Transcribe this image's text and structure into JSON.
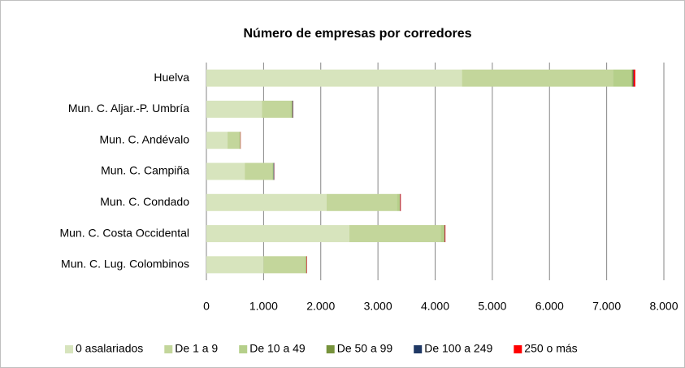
{
  "chart_data": {
    "type": "bar",
    "orientation": "horizontal",
    "stacked": true,
    "title": "Número de empresas por corredores",
    "categories": [
      "Huelva",
      "Mun. C. Aljar.-P. Umbría",
      "Mun. C. Andévalo",
      "Mun. C. Campiña",
      "Mun. C. Condado",
      "Mun. C. Costa Occidental",
      "Mun. C. Lug. Colombinos"
    ],
    "series": [
      {
        "name": "0 asalariados",
        "color": "#d7e4bd",
        "values": [
          4470,
          970,
          370,
          670,
          2100,
          2500,
          1000
        ]
      },
      {
        "name": "De 1 a 9",
        "color": "#c3d69b",
        "values": [
          2640,
          500,
          200,
          470,
          1230,
          1600,
          720
        ]
      },
      {
        "name": "De 10 a 49",
        "color": "#b5cf8a",
        "values": [
          330,
          30,
          20,
          30,
          50,
          60,
          25
        ]
      },
      {
        "name": "De 50 a 99",
        "color": "#77933c",
        "values": [
          20,
          5,
          3,
          5,
          5,
          5,
          5
        ]
      },
      {
        "name": "De 100 a 249",
        "color": "#1f3864",
        "values": [
          10,
          10,
          2,
          10,
          5,
          5,
          3
        ]
      },
      {
        "name": "250 o más",
        "color": "#ff0000",
        "values": [
          30,
          3,
          5,
          3,
          10,
          10,
          7
        ]
      }
    ],
    "xlim": [
      0,
      8000
    ],
    "xticks": [
      0,
      {
        "value": 1000,
        "label": "1.000"
      },
      {
        "value": 2000,
        "label": "2.000"
      },
      {
        "value": 3000,
        "label": "3.000"
      },
      {
        "value": 4000,
        "label": "4.000"
      },
      {
        "value": 5000,
        "label": "5.000"
      },
      {
        "value": 6000,
        "label": "6.000"
      },
      {
        "value": 7000,
        "label": "7.000"
      },
      {
        "value": 8000,
        "label": "8.000"
      }
    ],
    "grid": true,
    "legend": "bottom"
  }
}
